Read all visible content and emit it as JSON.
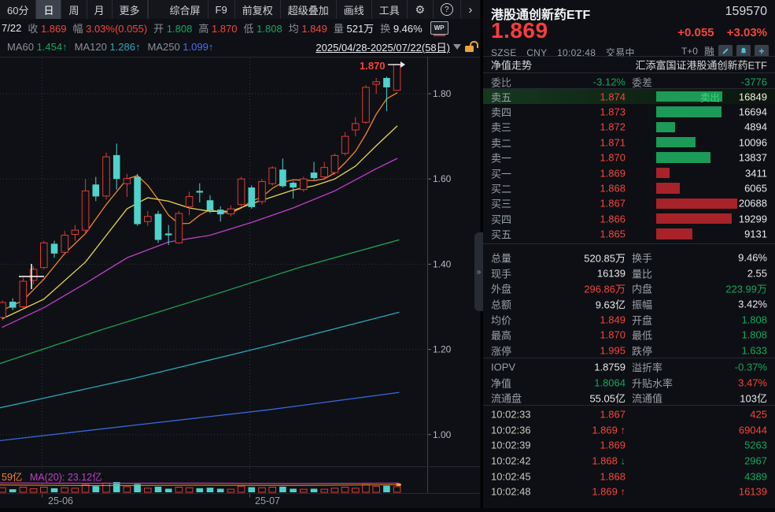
{
  "colors": {
    "up_red": "#e03b36",
    "down_cyan": "#4fd2cb",
    "text_red": "#f5453d",
    "text_green": "#12a85c",
    "ma5": "#f0852d",
    "ma10": "#e6d44e",
    "ma20": "#c13fc9",
    "ma60": "#1e9e54",
    "ma120": "#2aa8b4",
    "ma250": "#3b66e0",
    "sell_bar": "#1c9a57",
    "buy_bar": "#a8222a",
    "accent_teal": "#4cc2d8",
    "lock_orange": "#e8a33d"
  },
  "toolbar": {
    "period_tabs": [
      {
        "label": "60分",
        "sel": false
      },
      {
        "label": "日",
        "sel": true
      },
      {
        "label": "周",
        "sel": false
      },
      {
        "label": "月",
        "sel": false
      },
      {
        "label": "更多",
        "sel": false
      }
    ],
    "right_items": [
      "综合屏",
      "F9",
      "前复权",
      "超级叠加",
      "画线",
      "工具"
    ],
    "gear": "⚙",
    "help": "?",
    "chevron": "›"
  },
  "quote_bar": {
    "date": "7/22",
    "items": [
      {
        "label": "收",
        "value": "1.869",
        "c": "r"
      },
      {
        "label": "幅",
        "value": "3.03%(0.055)",
        "c": "r"
      },
      {
        "label": "开",
        "value": "1.808",
        "c": "g"
      },
      {
        "label": "高",
        "value": "1.870",
        "c": "r"
      },
      {
        "label": "低",
        "value": "1.808",
        "c": "g"
      },
      {
        "label": "均",
        "value": "1.849",
        "c": "r"
      },
      {
        "label": "量",
        "value": "521万",
        "c": "w"
      },
      {
        "label": "换",
        "value": "9.46%",
        "c": "w"
      }
    ],
    "wp_icon": "WP"
  },
  "ma_bar": {
    "items": [
      {
        "label": "MA60",
        "value": "1.454↑",
        "c": "g"
      },
      {
        "label": "MA120",
        "value": "1.286↑",
        "c": "cy"
      },
      {
        "label": "MA250",
        "value": "1.099↑",
        "c": "bl"
      }
    ],
    "date_range": "2025/04/28-2025/07/22(58日)"
  },
  "volume_pane": {
    "label_left": "59亿",
    "label_ma20": "MA(20): 23.12亿"
  },
  "chart_data": {
    "type": "candlestick",
    "title": "港股通创新药ETF 日K",
    "y_ticks": [
      {
        "label": "1.80",
        "price": 1.8
      },
      {
        "label": "1.60",
        "price": 1.6
      },
      {
        "label": "1.40",
        "price": 1.4
      },
      {
        "label": "1.20",
        "price": 1.2
      },
      {
        "label": "1.00",
        "price": 1.0
      }
    ],
    "x_labels": [
      {
        "text": "25-06",
        "x": 57
      },
      {
        "text": "25-07",
        "x": 320
      }
    ],
    "x_gridlines": [
      53,
      317
    ],
    "annotation": {
      "text": "1.870",
      "price": 1.87
    },
    "crosshair": {
      "x": 40,
      "y": 351
    },
    "candles": [
      [
        1.275,
        1.315,
        1.268,
        1.31,
        0.45
      ],
      [
        1.312,
        1.32,
        1.292,
        1.298,
        0.3
      ],
      [
        1.3,
        1.368,
        1.295,
        1.36,
        0.5
      ],
      [
        1.362,
        1.395,
        1.352,
        1.388,
        0.35
      ],
      [
        1.392,
        1.455,
        1.388,
        1.45,
        0.5
      ],
      [
        1.448,
        1.455,
        1.415,
        1.425,
        0.4
      ],
      [
        1.428,
        1.478,
        1.422,
        1.468,
        0.45
      ],
      [
        1.47,
        1.492,
        1.455,
        1.48,
        0.4
      ],
      [
        1.48,
        1.6,
        1.47,
        1.572,
        0.75
      ],
      [
        1.587,
        1.605,
        1.548,
        1.559,
        0.6
      ],
      [
        1.56,
        1.662,
        1.552,
        1.652,
        0.9
      ],
      [
        1.656,
        1.683,
        1.575,
        1.6,
        1.0
      ],
      [
        1.589,
        1.612,
        1.558,
        1.601,
        0.55
      ],
      [
        1.605,
        1.612,
        1.49,
        1.494,
        0.8
      ],
      [
        1.5,
        1.525,
        1.49,
        1.512,
        0.4
      ],
      [
        1.518,
        1.525,
        1.45,
        1.457,
        0.55
      ],
      [
        1.472,
        1.492,
        1.445,
        1.468,
        0.35
      ],
      [
        1.45,
        1.525,
        1.448,
        1.519,
        0.5
      ],
      [
        1.535,
        1.57,
        1.515,
        1.559,
        0.45
      ],
      [
        1.572,
        1.59,
        1.545,
        1.568,
        0.4
      ],
      [
        1.55,
        1.562,
        1.52,
        1.526,
        0.45
      ],
      [
        1.528,
        1.536,
        1.5,
        1.517,
        0.35
      ],
      [
        1.518,
        1.538,
        1.512,
        1.53,
        0.3
      ],
      [
        1.54,
        1.605,
        1.535,
        1.6,
        0.6
      ],
      [
        1.58,
        1.585,
        1.53,
        1.534,
        0.5
      ],
      [
        1.547,
        1.6,
        1.54,
        1.594,
        0.45
      ],
      [
        1.589,
        1.63,
        1.585,
        1.626,
        0.5
      ],
      [
        1.622,
        1.648,
        1.58,
        1.583,
        0.55
      ],
      [
        1.591,
        1.595,
        1.554,
        1.58,
        0.35
      ],
      [
        1.575,
        1.605,
        1.57,
        1.6,
        0.3
      ],
      [
        1.615,
        1.64,
        1.598,
        1.602,
        0.35
      ],
      [
        1.605,
        1.64,
        1.6,
        1.627,
        0.3
      ],
      [
        1.615,
        1.66,
        1.61,
        1.655,
        0.4
      ],
      [
        1.66,
        1.71,
        1.655,
        1.7,
        0.5
      ],
      [
        1.715,
        1.745,
        1.7,
        1.73,
        0.4
      ],
      [
        1.733,
        1.82,
        1.73,
        1.815,
        0.75
      ],
      [
        1.822,
        1.837,
        1.8,
        1.828,
        0.6
      ],
      [
        1.837,
        1.84,
        1.759,
        1.815,
        0.65
      ],
      [
        1.808,
        1.87,
        1.808,
        1.869,
        0.55
      ]
    ],
    "ma_short": [
      {
        "name": "MA5",
        "color": "#f0852d",
        "points_ip": [
          [
            0,
            1.292
          ],
          [
            2,
            1.315
          ],
          [
            4,
            1.365
          ],
          [
            6,
            1.425
          ],
          [
            8,
            1.472
          ],
          [
            10,
            1.54
          ],
          [
            12,
            1.6
          ],
          [
            13,
            1.608
          ],
          [
            14,
            1.585
          ],
          [
            15,
            1.552
          ],
          [
            16,
            1.515
          ],
          [
            17,
            1.495
          ],
          [
            18,
            1.496
          ],
          [
            19,
            1.515
          ],
          [
            20,
            1.528
          ],
          [
            21,
            1.522
          ],
          [
            22,
            1.52
          ],
          [
            23,
            1.532
          ],
          [
            24,
            1.548
          ],
          [
            25,
            1.558
          ],
          [
            26,
            1.578
          ],
          [
            27,
            1.592
          ],
          [
            28,
            1.598
          ],
          [
            30,
            1.596
          ],
          [
            31,
            1.6
          ],
          [
            32,
            1.614
          ],
          [
            33,
            1.638
          ],
          [
            34,
            1.665
          ],
          [
            35,
            1.705
          ],
          [
            36,
            1.752
          ],
          [
            37,
            1.788
          ],
          [
            38,
            1.802
          ]
        ]
      },
      {
        "name": "MA10",
        "color": "#e6d44e",
        "points_ip": [
          [
            0,
            1.272
          ],
          [
            4,
            1.318
          ],
          [
            8,
            1.405
          ],
          [
            12,
            1.53
          ],
          [
            14,
            1.556
          ],
          [
            16,
            1.548
          ],
          [
            18,
            1.532
          ],
          [
            20,
            1.524
          ],
          [
            22,
            1.524
          ],
          [
            24,
            1.542
          ],
          [
            26,
            1.558
          ],
          [
            28,
            1.574
          ],
          [
            30,
            1.584
          ],
          [
            32,
            1.6
          ],
          [
            34,
            1.63
          ],
          [
            36,
            1.678
          ],
          [
            38,
            1.724
          ]
        ]
      },
      {
        "name": "MA20",
        "color": "#c13fc9",
        "points_ip": [
          [
            0,
            1.252
          ],
          [
            4,
            1.298
          ],
          [
            8,
            1.355
          ],
          [
            12,
            1.415
          ],
          [
            16,
            1.452
          ],
          [
            20,
            1.468
          ],
          [
            24,
            1.498
          ],
          [
            28,
            1.532
          ],
          [
            32,
            1.572
          ],
          [
            34,
            1.598
          ],
          [
            36,
            1.624
          ],
          [
            38,
            1.648
          ]
        ]
      }
    ],
    "ma_long": [
      {
        "name": "MA60",
        "color": "#1e9e54",
        "points_xp": [
          [
            0,
            1.167
          ],
          [
            127,
            1.245
          ],
          [
            254,
            1.318
          ],
          [
            380,
            1.392
          ],
          [
            507,
            1.457
          ]
        ]
      },
      {
        "name": "MA120",
        "color": "#2aa8b4",
        "points_xp": [
          [
            0,
            1.063
          ],
          [
            170,
            1.132
          ],
          [
            340,
            1.208
          ],
          [
            507,
            1.287
          ]
        ]
      },
      {
        "name": "MA250",
        "color": "#3b66e0",
        "points_xp": [
          [
            0,
            0.986
          ],
          [
            170,
            1.022
          ],
          [
            340,
            1.058
          ],
          [
            507,
            1.099
          ]
        ]
      }
    ],
    "vol_ma": [
      {
        "name": "VOLMA20",
        "color": "#c13fc9",
        "points": [
          [
            0,
            0.92
          ],
          [
            120,
            0.88
          ],
          [
            250,
            0.9
          ],
          [
            380,
            0.86
          ],
          [
            507,
            0.9
          ]
        ]
      },
      {
        "name": "VOLMA5",
        "color": "#f0852d",
        "points": [
          [
            0,
            0.72
          ],
          [
            120,
            0.66
          ],
          [
            250,
            0.7
          ],
          [
            380,
            0.68
          ],
          [
            507,
            0.74
          ]
        ]
      }
    ]
  },
  "panel": {
    "name": "港股通创新药ETF",
    "code": "159570",
    "price": "1.869",
    "change": "+0.055",
    "change_pct": "+3.03%",
    "exchange": "SZSE",
    "currency": "CNY",
    "time": "10:02:48",
    "status": "交易中",
    "tplus": "T+0",
    "margin_flag": "融",
    "nav_label": "净值走势",
    "fund_name": "汇添富国证港股通创新药ETF",
    "weibi_label": "委比",
    "weibi": "-3.12%",
    "weicha_label": "委差",
    "weicha": "-3776",
    "sell_button": "卖出",
    "order_book": {
      "max_vol": 20688,
      "sells": [
        {
          "label": "卖五",
          "price": "1.874",
          "vol": 16849,
          "hl": true
        },
        {
          "label": "卖四",
          "price": "1.873",
          "vol": 16694,
          "hl": false
        },
        {
          "label": "卖三",
          "price": "1.872",
          "vol": 4894,
          "hl": false
        },
        {
          "label": "卖二",
          "price": "1.871",
          "vol": 10096,
          "hl": false
        },
        {
          "label": "卖一",
          "price": "1.870",
          "vol": 13837,
          "hl": false
        }
      ],
      "buys": [
        {
          "label": "买一",
          "price": "1.869",
          "vol": 3411,
          "hl": false
        },
        {
          "label": "买二",
          "price": "1.868",
          "vol": 6065,
          "hl": false
        },
        {
          "label": "买三",
          "price": "1.867",
          "vol": 20688,
          "hl": false
        },
        {
          "label": "买四",
          "price": "1.866",
          "vol": 19299,
          "hl": false
        },
        {
          "label": "买五",
          "price": "1.865",
          "vol": 9131,
          "hl": false
        }
      ]
    },
    "stats": [
      {
        "l1": "总量",
        "v1": "520.85万",
        "c1": "w",
        "l2": "换手",
        "v2": "9.46%",
        "c2": "w"
      },
      {
        "l1": "现手",
        "v1": "16139",
        "c1": "w",
        "l2": "量比",
        "v2": "2.55",
        "c2": "w"
      },
      {
        "l1": "外盘",
        "v1": "296.86万",
        "c1": "r",
        "l2": "内盘",
        "v2": "223.99万",
        "c2": "g"
      },
      {
        "l1": "总额",
        "v1": "9.63亿",
        "c1": "w",
        "l2": "振幅",
        "v2": "3.42%",
        "c2": "w"
      },
      {
        "l1": "均价",
        "v1": "1.849",
        "c1": "r",
        "l2": "开盘",
        "v2": "1.808",
        "c2": "g"
      },
      {
        "l1": "最高",
        "v1": "1.870",
        "c1": "r",
        "l2": "最低",
        "v2": "1.808",
        "c2": "g"
      },
      {
        "l1": "涨停",
        "v1": "1.995",
        "c1": "r",
        "l2": "跌停",
        "v2": "1.633",
        "c2": "g"
      }
    ],
    "iopv_rows": [
      {
        "l1": "IOPV",
        "v1": "1.8759",
        "c1": "w",
        "l2": "溢折率",
        "v2": "-0.37%",
        "c2": "g"
      },
      {
        "l1": "净值",
        "v1": "1.8064",
        "c1": "g",
        "l2": "升贴水率",
        "v2": "3.47%",
        "c2": "r"
      },
      {
        "l1": "流通盘",
        "v1": "55.05亿",
        "c1": "w",
        "l2": "流通值",
        "v2": "103亿",
        "c2": "w"
      }
    ],
    "ticks": [
      {
        "time": "10:02:33",
        "price": "1.867",
        "dir": "",
        "vol": "425",
        "vc": "r"
      },
      {
        "time": "10:02:36",
        "price": "1.869",
        "dir": "up",
        "vol": "69044",
        "vc": "r"
      },
      {
        "time": "10:02:39",
        "price": "1.869",
        "dir": "",
        "vol": "5263",
        "vc": "g"
      },
      {
        "time": "10:02:42",
        "price": "1.868",
        "dir": "down",
        "vol": "2967",
        "vc": "g"
      },
      {
        "time": "10:02:45",
        "price": "1.868",
        "dir": "",
        "vol": "4389",
        "vc": "g"
      },
      {
        "time": "10:02:48",
        "price": "1.869",
        "dir": "up",
        "vol": "16139",
        "vc": "r"
      }
    ],
    "collapse_glyph": "»"
  }
}
